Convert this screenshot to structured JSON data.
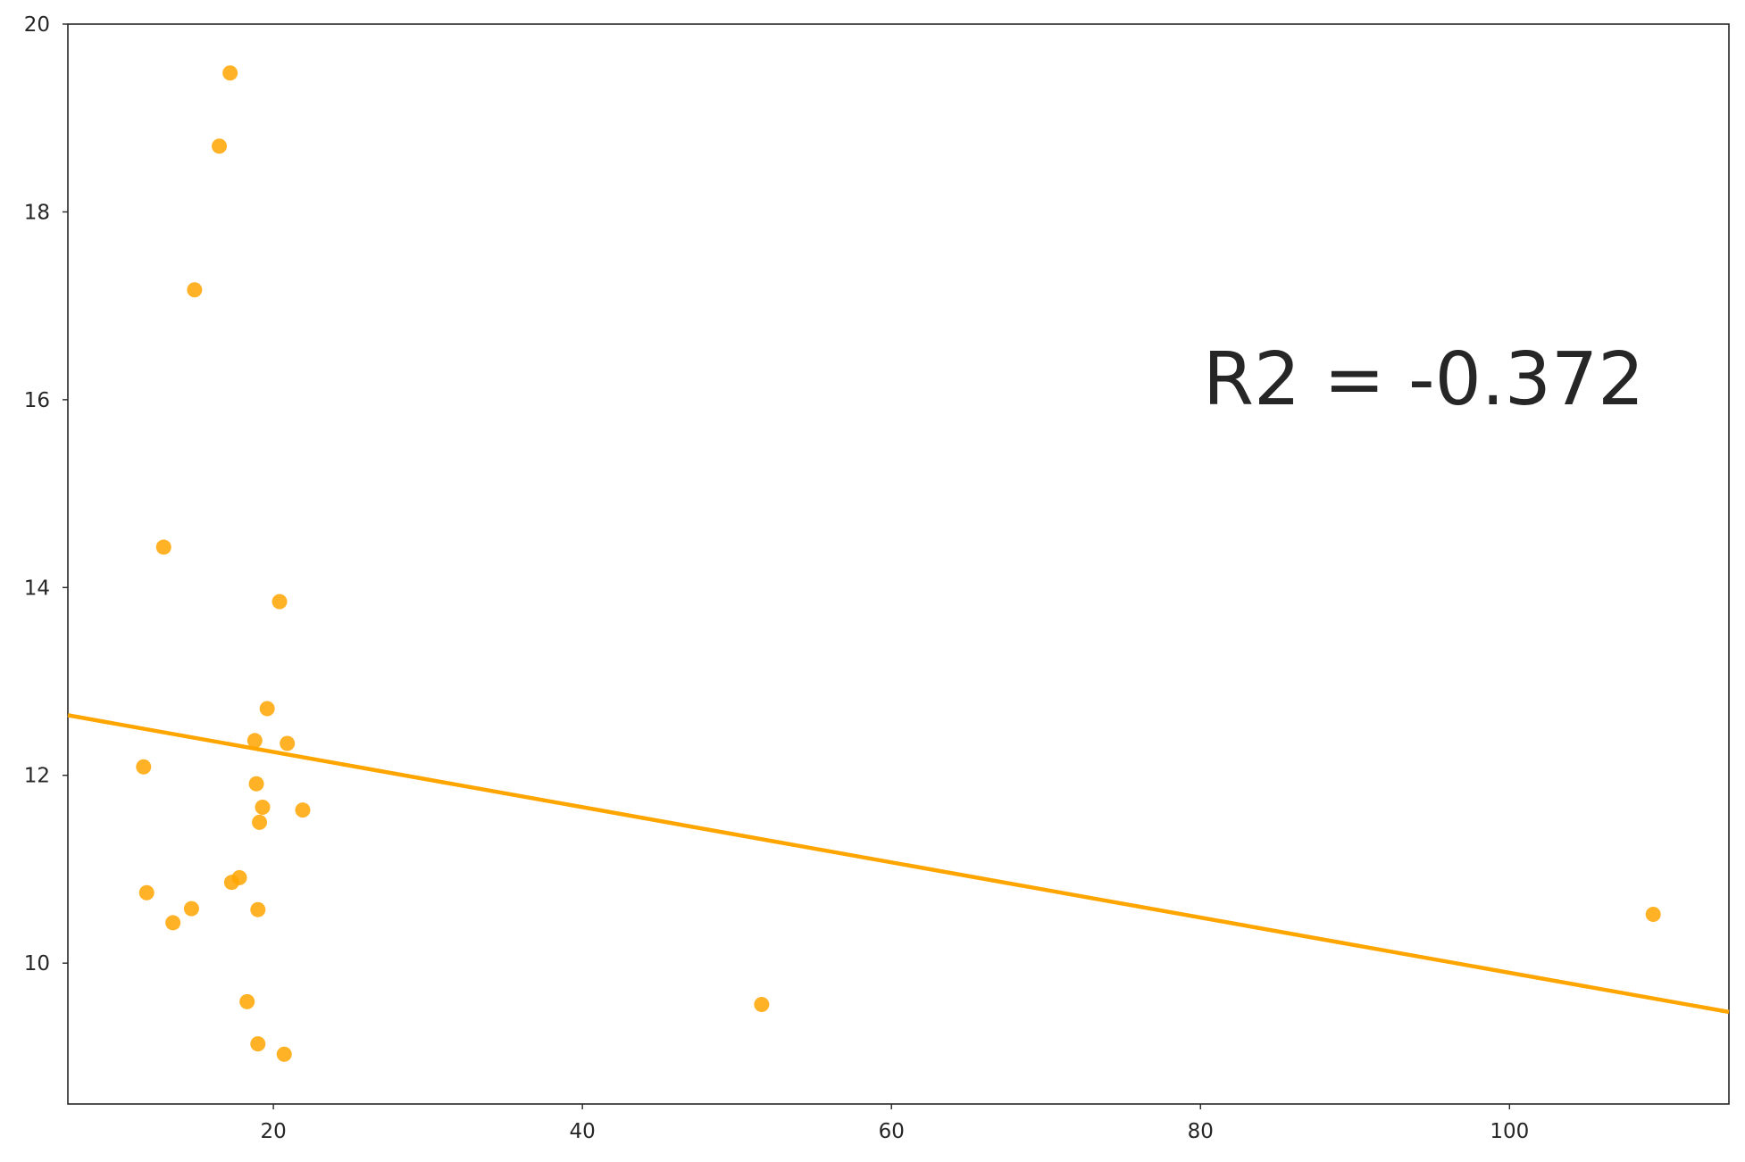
{
  "chart_data": {
    "type": "scatter",
    "title": "",
    "xlabel": "",
    "ylabel": "",
    "xlim": [
      6.7,
      114.2
    ],
    "ylim": [
      8.5,
      20
    ],
    "x_ticks": [
      20,
      40,
      60,
      80,
      100
    ],
    "y_ticks": [
      10,
      12,
      14,
      16,
      18,
      20
    ],
    "grid": false,
    "legend": "none",
    "colors": {
      "points": "#FFA500",
      "line": "#FFA500",
      "axes": "#262626"
    },
    "series": [
      {
        "values": [
          {
            "x": 17.2,
            "y": 19.48
          },
          {
            "x": 16.5,
            "y": 18.7
          },
          {
            "x": 14.9,
            "y": 17.17
          },
          {
            "x": 12.9,
            "y": 14.43
          },
          {
            "x": 20.4,
            "y": 13.85
          },
          {
            "x": 19.6,
            "y": 12.71
          },
          {
            "x": 18.8,
            "y": 12.37
          },
          {
            "x": 20.9,
            "y": 12.34
          },
          {
            "x": 11.6,
            "y": 12.09
          },
          {
            "x": 18.9,
            "y": 11.91
          },
          {
            "x": 19.3,
            "y": 11.66
          },
          {
            "x": 21.9,
            "y": 11.63
          },
          {
            "x": 19.1,
            "y": 11.5
          },
          {
            "x": 17.8,
            "y": 10.91
          },
          {
            "x": 17.3,
            "y": 10.86
          },
          {
            "x": 11.8,
            "y": 10.75
          },
          {
            "x": 14.7,
            "y": 10.58
          },
          {
            "x": 19.0,
            "y": 10.57
          },
          {
            "x": 13.5,
            "y": 10.43
          },
          {
            "x": 109.3,
            "y": 10.52
          },
          {
            "x": 18.3,
            "y": 9.59
          },
          {
            "x": 51.6,
            "y": 9.56
          },
          {
            "x": 19.0,
            "y": 9.14
          },
          {
            "x": 20.7,
            "y": 9.03
          }
        ]
      }
    ],
    "regression_line": {
      "x": [
        6.7,
        114.2
      ],
      "y": [
        12.64,
        9.48
      ]
    },
    "annotation": "R2 = -0.372"
  }
}
